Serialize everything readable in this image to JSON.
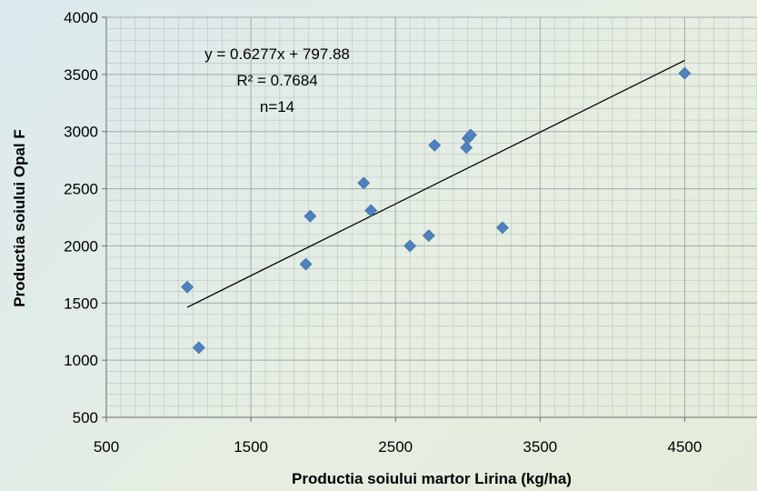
{
  "chart_data": {
    "type": "scatter",
    "xlabel": "Productia soiului martor Lirina (kg/ha)",
    "ylabel": "Productia soiului Opal F",
    "xlim": [
      500,
      5000
    ],
    "ylim": [
      500,
      4000
    ],
    "x_ticks": [
      "500",
      "1500",
      "2500",
      "3500",
      "4500"
    ],
    "y_ticks": [
      "500",
      "1000",
      "1500",
      "2000",
      "2500",
      "3000",
      "3500",
      "4000"
    ],
    "grid": true,
    "points": [
      {
        "x": 1060,
        "y": 1640
      },
      {
        "x": 1140,
        "y": 1110
      },
      {
        "x": 1880,
        "y": 1840
      },
      {
        "x": 1910,
        "y": 2260
      },
      {
        "x": 2280,
        "y": 2550
      },
      {
        "x": 2330,
        "y": 2310
      },
      {
        "x": 2600,
        "y": 2000
      },
      {
        "x": 2730,
        "y": 2090
      },
      {
        "x": 2770,
        "y": 2880
      },
      {
        "x": 2990,
        "y": 2860
      },
      {
        "x": 3000,
        "y": 2940
      },
      {
        "x": 3020,
        "y": 2970
      },
      {
        "x": 3240,
        "y": 2160
      },
      {
        "x": 4500,
        "y": 3510
      }
    ],
    "trendline": {
      "slope": 0.6277,
      "intercept": 797.88,
      "x_start": 1060,
      "x_end": 4500
    },
    "annotations": {
      "equation": "y = 0.6277x + 797.88",
      "r2": "R² = 0.7684",
      "n": "n=14"
    },
    "colors": {
      "marker": "#4f81bd",
      "trendline": "#000000",
      "grid": "#9aa3a8"
    }
  }
}
